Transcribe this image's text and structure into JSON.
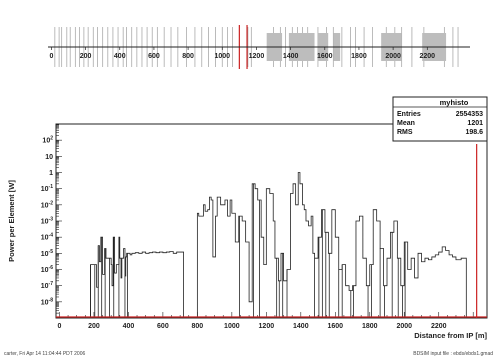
{
  "chart_data": [
    {
      "type": "beamline_layout",
      "x_ticks": [
        "0",
        "200",
        "400",
        "600",
        "800",
        "1000",
        "1200",
        "1400",
        "1600",
        "1800",
        "2000",
        "2200"
      ],
      "xlim": [
        -20,
        2450
      ],
      "thin_elements": [
        20,
        45,
        60,
        90,
        110,
        140,
        165,
        190,
        215,
        245,
        270,
        300,
        330,
        360,
        390,
        420,
        440,
        470,
        500,
        530,
        560,
        590,
        620,
        660,
        700,
        740,
        790,
        840,
        880,
        920,
        960,
        1000,
        1030,
        1060,
        1150,
        1170,
        1300,
        1340,
        1370,
        1410,
        1440,
        1470,
        1500,
        1560,
        1610,
        1650,
        1700,
        1750,
        1780,
        1830,
        1880,
        1960,
        2010,
        2050,
        2110,
        2180,
        2300,
        2350,
        2380
      ],
      "blocks": [
        [
          1260,
          1350
        ],
        [
          1390,
          1540
        ],
        [
          1560,
          1620
        ],
        [
          1650,
          1690
        ],
        [
          1930,
          2050
        ],
        [
          2170,
          2310
        ]
      ],
      "red_markers": [
        1100,
        1145
      ]
    },
    {
      "type": "histogram",
      "xlabel": "Distance from IP [m]",
      "ylabel": "Power per Element [W]",
      "xlim": [
        -20,
        2480
      ],
      "ylog": true,
      "ylim": [
        1e-09,
        1000
      ],
      "x_ticks": [
        0,
        200,
        400,
        600,
        800,
        1000,
        1200,
        1400,
        1600,
        1800,
        2000,
        2200
      ],
      "y_ticks": [
        0.01,
        0.1,
        1,
        10,
        100
      ],
      "y_tick_exponents": [
        -8,
        -7,
        -6,
        -5,
        -4,
        -3,
        -2,
        -1,
        0,
        1,
        2
      ],
      "y_tick_labels_plain": [
        "1",
        "10"
      ],
      "y_tick_exponent_labels": [
        "-8",
        "-7",
        "-6",
        "-5",
        "-4",
        "-3",
        "-2",
        "-1",
        "2"
      ],
      "y_tick_base": "10",
      "series": [
        {
          "values": [
            [
              180,
              180,
              1e-08
            ],
            [
              180,
              215,
              2e-06
            ],
            [
              215,
              225,
              8e-08
            ],
            [
              225,
              232,
              3e-05
            ],
            [
              232,
              240,
              3e-06
            ],
            [
              240,
              250,
              0.0001
            ],
            [
              250,
              262,
              5e-07
            ],
            [
              262,
              270,
              2e-05
            ],
            [
              270,
              300,
              5e-06
            ],
            [
              300,
              305,
              2e-06
            ],
            [
              305,
              312,
              1e-07
            ],
            [
              312,
              320,
              0.0001
            ],
            [
              320,
              330,
              6e-07
            ],
            [
              330,
              345,
              2e-06
            ],
            [
              345,
              350,
              0.0001
            ],
            [
              350,
              357,
              5e-06
            ],
            [
              357,
              362,
              3e-07
            ],
            [
              362,
              372,
              5e-06
            ],
            [
              372,
              380,
              2e-05
            ],
            [
              380,
              385,
              4e-07
            ],
            [
              385,
              390,
              6e-06
            ],
            [
              390,
              400,
              1e-05
            ],
            [
              400,
              410,
              1e-05
            ],
            [
              410,
              420,
              8e-06
            ],
            [
              420,
              440,
              1e-05
            ],
            [
              440,
              460,
              1.1e-05
            ],
            [
              460,
              480,
              1e-05
            ],
            [
              480,
              500,
              1.2e-05
            ],
            [
              500,
              520,
              1e-05
            ],
            [
              520,
              540,
              1.1e-05
            ],
            [
              540,
              560,
              1.2e-05
            ],
            [
              560,
              580,
              1.1e-05
            ],
            [
              580,
              600,
              1.2e-05
            ],
            [
              600,
              620,
              1.1e-05
            ],
            [
              620,
              640,
              1.2e-05
            ],
            [
              640,
              660,
              1.3e-05
            ],
            [
              660,
              680,
              1e-05
            ],
            [
              680,
              720,
              1.2e-05
            ],
            [
              720,
              770,
              1e-09
            ],
            [
              770,
              800,
              1e-09
            ],
            [
              800,
              808,
              0.003
            ],
            [
              808,
              820,
              0.002
            ],
            [
              820,
              835,
              0.002
            ],
            [
              835,
              845,
              0.01
            ],
            [
              845,
              860,
              0.004
            ],
            [
              860,
              870,
              0.005
            ],
            [
              870,
              880,
              0.03
            ],
            [
              880,
              890,
              0.02
            ],
            [
              890,
              905,
              6e-06
            ],
            [
              905,
              915,
              0.002
            ],
            [
              915,
              935,
              0.03
            ],
            [
              935,
              960,
              0.01
            ],
            [
              960,
              975,
              0.02
            ],
            [
              975,
              990,
              0.002
            ],
            [
              990,
              1000,
              0.02
            ],
            [
              1000,
              1020,
              0.003
            ],
            [
              1020,
              1040,
              5e-05
            ],
            [
              1040,
              1060,
              0.002
            ],
            [
              1060,
              1080,
              0.001
            ],
            [
              1080,
              1100,
              5e-05
            ],
            [
              1100,
              1118,
              1e-08
            ],
            [
              1118,
              1135,
              0.2
            ],
            [
              1135,
              1150,
              0.1
            ],
            [
              1150,
              1170,
              0.02
            ],
            [
              1170,
              1185,
              0.0001
            ],
            [
              1185,
              1200,
              2e-06
            ],
            [
              1200,
              1220,
              0.1
            ],
            [
              1220,
              1240,
              0.05
            ],
            [
              1240,
              1250,
              0.001
            ],
            [
              1250,
              1270,
              5e-06
            ],
            [
              1270,
              1285,
              2e-07
            ],
            [
              1285,
              1300,
              1e-05
            ],
            [
              1300,
              1320,
              2e-07
            ],
            [
              1320,
              1340,
              1e-06
            ],
            [
              1340,
              1355,
              0.05
            ],
            [
              1355,
              1370,
              0.2
            ],
            [
              1370,
              1385,
              0.01
            ],
            [
              1385,
              1395,
              1
            ],
            [
              1395,
              1410,
              0.2
            ],
            [
              1410,
              1420,
              0.01
            ],
            [
              1420,
              1430,
              0.005
            ],
            [
              1430,
              1445,
              0.001
            ],
            [
              1445,
              1460,
              0.0005
            ],
            [
              1460,
              1470,
              0.002
            ],
            [
              1470,
              1480,
              1e-05
            ],
            [
              1480,
              1500,
              5e-06
            ],
            [
              1500,
              1520,
              0.0001
            ],
            [
              1520,
              1540,
              0.005
            ],
            [
              1540,
              1560,
              0.0002
            ],
            [
              1560,
              1580,
              1e-05
            ],
            [
              1580,
              1600,
              0.005
            ],
            [
              1600,
              1620,
              0.0001
            ],
            [
              1620,
              1640,
              1e-06
            ],
            [
              1640,
              1660,
              2e-06
            ],
            [
              1660,
              1680,
              1e-07
            ],
            [
              1680,
              1700,
              5e-08
            ],
            [
              1700,
              1720,
              1e-07
            ],
            [
              1720,
              1740,
              0.001
            ],
            [
              1740,
              1760,
              0.002
            ],
            [
              1760,
              1780,
              5e-06
            ],
            [
              1780,
              1800,
              1e-07
            ],
            [
              1800,
              1820,
              2e-06
            ],
            [
              1820,
              1840,
              0.005
            ],
            [
              1840,
              1860,
              0.001
            ],
            [
              1860,
              1880,
              2e-05
            ],
            [
              1880,
              1900,
              1e-07
            ],
            [
              1900,
              1920,
              5e-06
            ],
            [
              1920,
              1940,
              0.0002
            ],
            [
              1940,
              1960,
              0.001
            ],
            [
              1960,
              1980,
              5e-06
            ],
            [
              1980,
              2000,
              1e-07
            ],
            [
              2000,
              2020,
              5e-05
            ],
            [
              2020,
              2040,
              1e-06
            ],
            [
              2040,
              2060,
              5e-06
            ],
            [
              2060,
              2080,
              3e-07
            ],
            [
              2080,
              2100,
              1e-05
            ],
            [
              2100,
              2120,
              3e-06
            ],
            [
              2120,
              2140,
              5e-06
            ],
            [
              2140,
              2160,
              4e-06
            ],
            [
              2160,
              2180,
              6e-06
            ],
            [
              2180,
              2200,
              8e-06
            ],
            [
              2200,
              2220,
              1.2e-05
            ],
            [
              2220,
              2240,
              2.5e-05
            ],
            [
              2240,
              2260,
              1.5e-05
            ],
            [
              2260,
              2280,
              8e-06
            ],
            [
              2280,
              2300,
              6e-06
            ],
            [
              2300,
              2330,
              4e-06
            ],
            [
              2330,
              2360,
              5e-06
            ]
          ]
        }
      ],
      "spikes": [
        180,
        205,
        225,
        245,
        265,
        290,
        315,
        345,
        380,
        395,
        720,
        740,
        765,
        1045,
        1125,
        1160,
        1260,
        1275,
        1295,
        1320,
        1480,
        1505,
        1525,
        1545,
        1565,
        1620,
        1640,
        1690,
        1705,
        1790,
        1810,
        1860,
        1885,
        1930,
        1965,
        1990,
        2005
      ],
      "red_markers": [
        2420
      ],
      "stats": {
        "title": "myhisto",
        "rows": [
          {
            "label": "Entries",
            "value": "2554353"
          },
          {
            "label": "Mean",
            "value": "1201"
          },
          {
            "label": "RMS",
            "value": "198.6"
          }
        ]
      },
      "footer_left": "carter, Fri Apr 14 11:04:44 PDT 2006",
      "footer_right": "BDSIM input file : ebds/ebds1.gmad"
    }
  ],
  "colors": {
    "line": "#222222",
    "red": "#cc2222",
    "grey_block": "#bdbdbd",
    "thin_element": "#aaaaaa"
  }
}
